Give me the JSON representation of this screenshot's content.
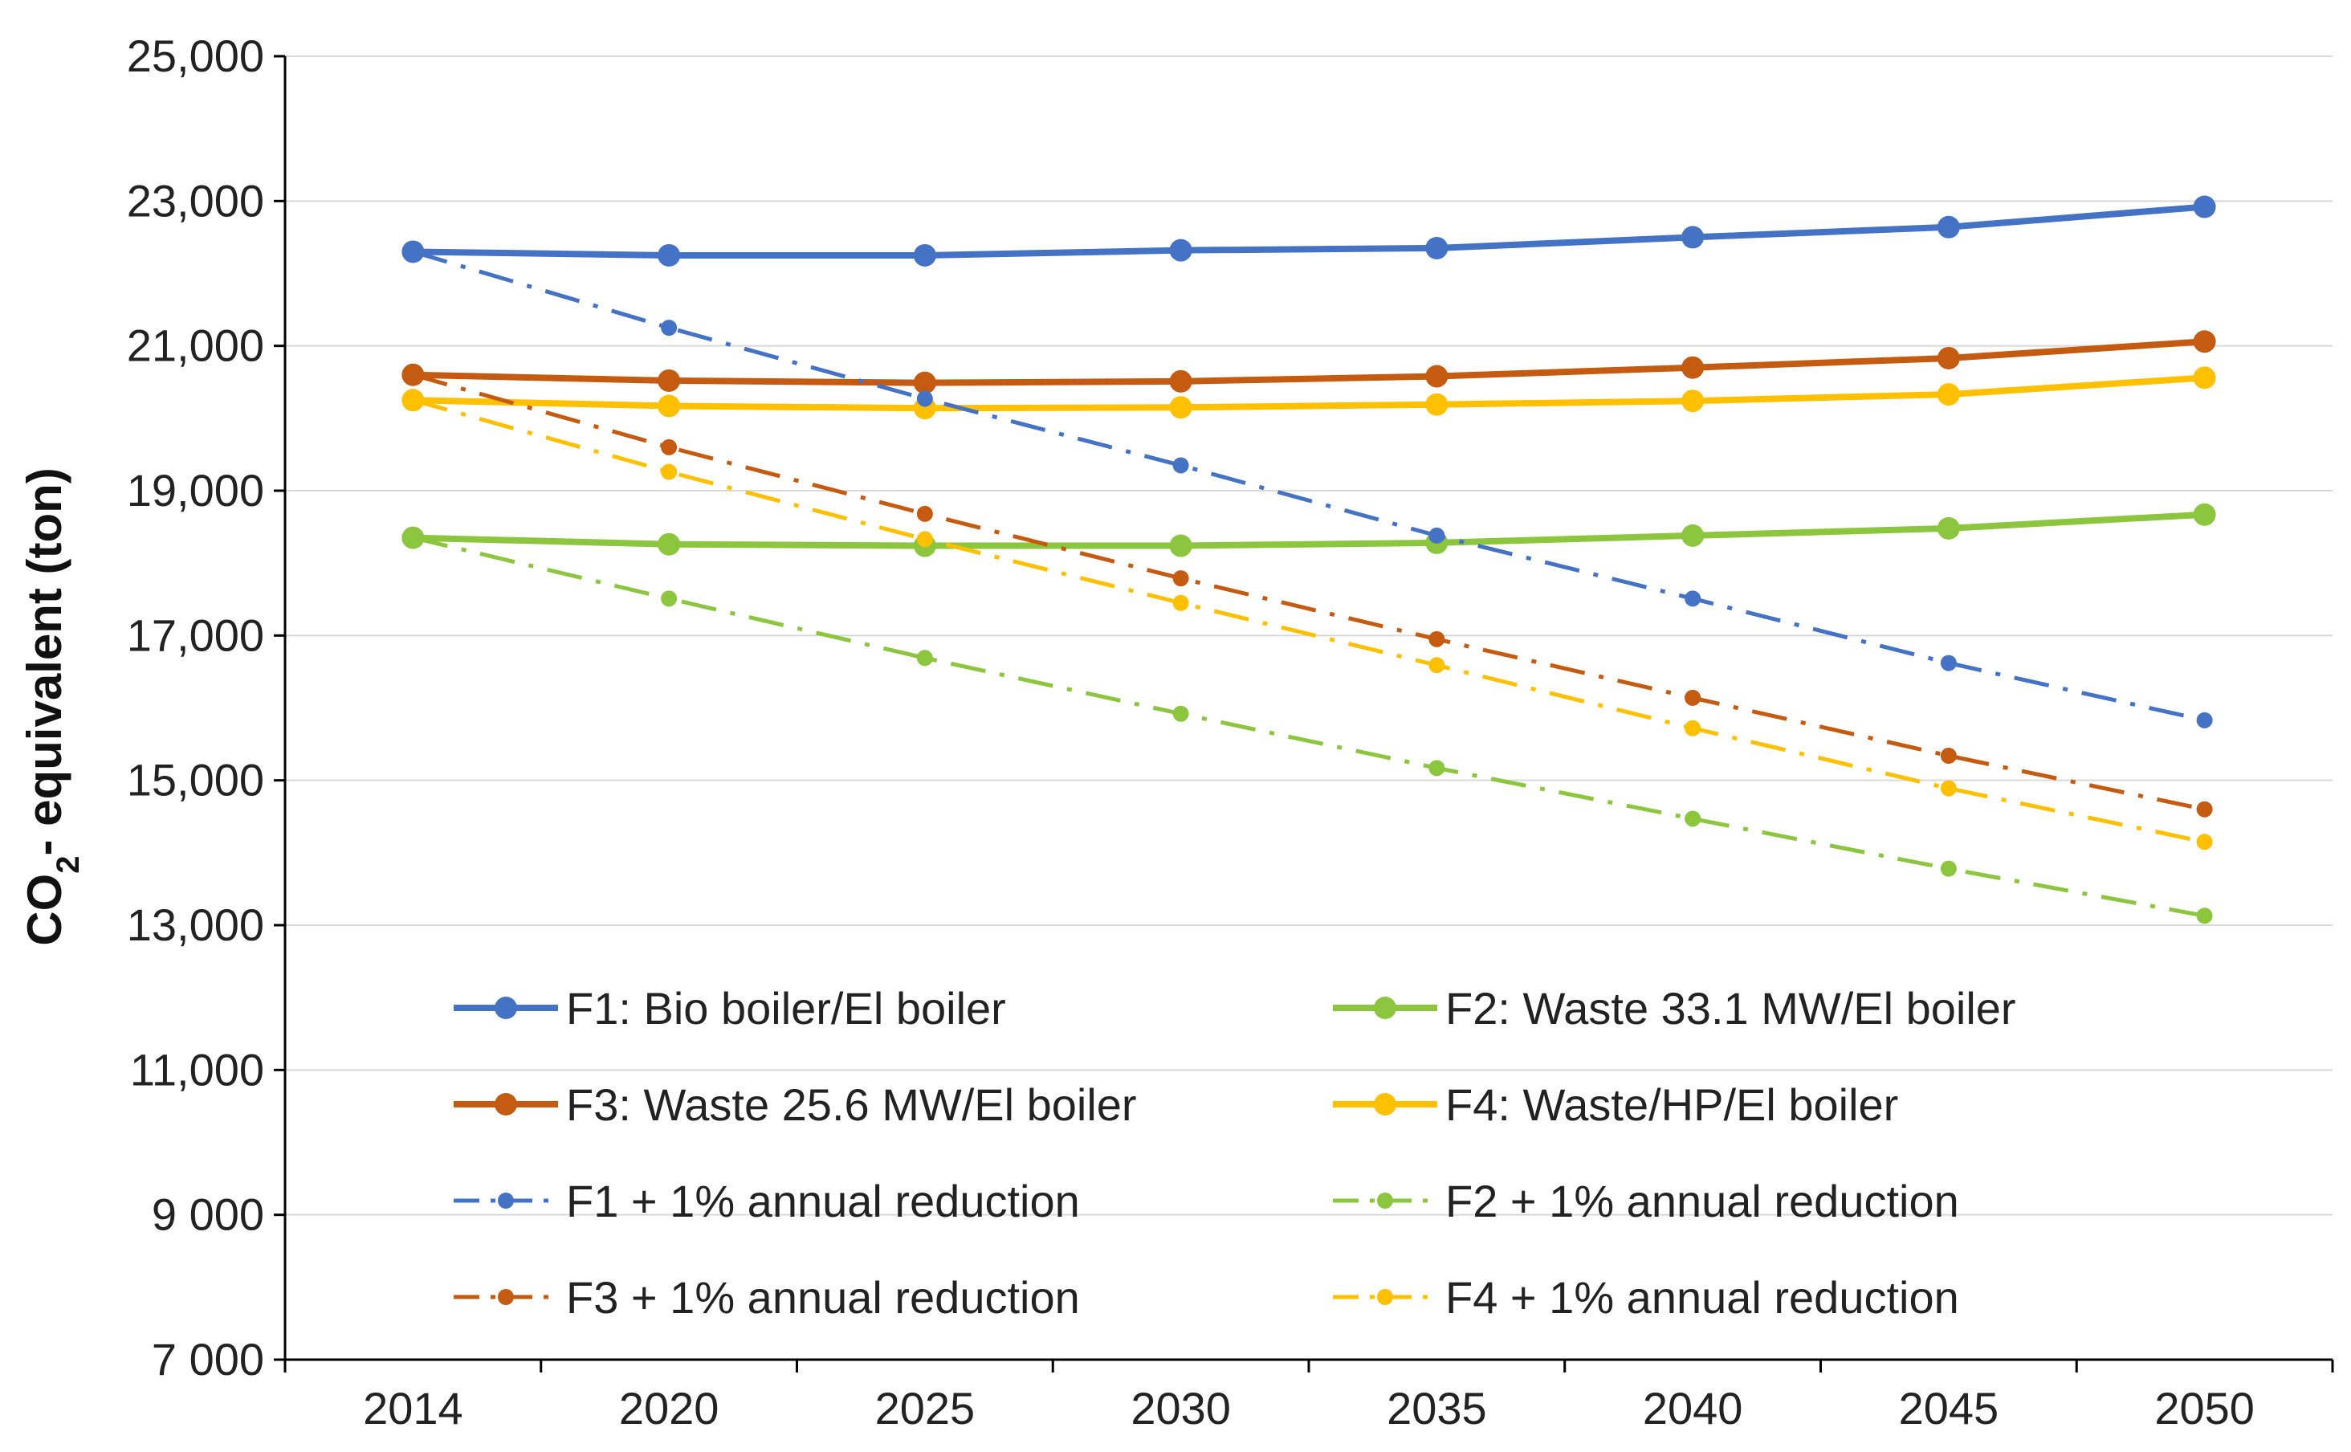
{
  "chart_data": {
    "type": "line",
    "title": "",
    "xlabel": "",
    "ylabel": "CO2- equivalent (ton)",
    "ylabel_main": "CO",
    "ylabel_sub": "2",
    "ylabel_rest": "- equivalent (ton)",
    "x": [
      "2014",
      "2020",
      "2025",
      "2030",
      "2035",
      "2040",
      "2045",
      "2050"
    ],
    "ylim": [
      7000,
      25000
    ],
    "y_ticks": [
      7000,
      9000,
      11000,
      13000,
      15000,
      17000,
      19000,
      21000,
      23000,
      25000
    ],
    "y_tick_labels": [
      "7 000",
      "9 000",
      "11,000",
      "13,000",
      "15,000",
      "17,000",
      "19,000",
      "21,000",
      "23,000",
      "25,000"
    ],
    "grid": true,
    "legend_position": "bottom-inside",
    "series": [
      {
        "name": "F1: Bio boiler/El boiler",
        "color": "#4472C4",
        "style": "solid",
        "values": [
          22300,
          22250,
          22250,
          22320,
          22350,
          22500,
          22640,
          22920
        ]
      },
      {
        "name": "F2: Waste 33.1 MW/El boiler",
        "color": "#8CC63F",
        "style": "solid",
        "values": [
          18350,
          18260,
          18240,
          18240,
          18280,
          18380,
          18480,
          18670
        ]
      },
      {
        "name": "F3: Waste 25.6 MW/El boiler",
        "color": "#C55A11",
        "style": "solid",
        "values": [
          20600,
          20520,
          20490,
          20510,
          20580,
          20700,
          20830,
          21060
        ]
      },
      {
        "name": "F4: Waste/HP/El boiler",
        "color": "#FFC000",
        "style": "solid",
        "values": [
          20250,
          20170,
          20140,
          20150,
          20190,
          20240,
          20330,
          20560
        ]
      },
      {
        "name": "F1 + 1% annual reduction",
        "color": "#4472C4",
        "style": "dashdot",
        "values": [
          22300,
          21250,
          20270,
          19350,
          18380,
          17510,
          16620,
          15830
        ]
      },
      {
        "name": "F2 + 1% annual reduction",
        "color": "#8CC63F",
        "style": "dashdot",
        "values": [
          18350,
          17510,
          16690,
          15920,
          15170,
          14470,
          13780,
          13130
        ]
      },
      {
        "name": "F3 + 1% annual reduction",
        "color": "#C55A11",
        "style": "dashdot",
        "values": [
          20600,
          19600,
          18680,
          17790,
          16950,
          16140,
          15340,
          14600
        ]
      },
      {
        "name": "F4 + 1% annual reduction",
        "color": "#FFC000",
        "style": "dashdot",
        "values": [
          20250,
          19260,
          18330,
          17450,
          16590,
          15720,
          14890,
          14150
        ]
      }
    ]
  }
}
